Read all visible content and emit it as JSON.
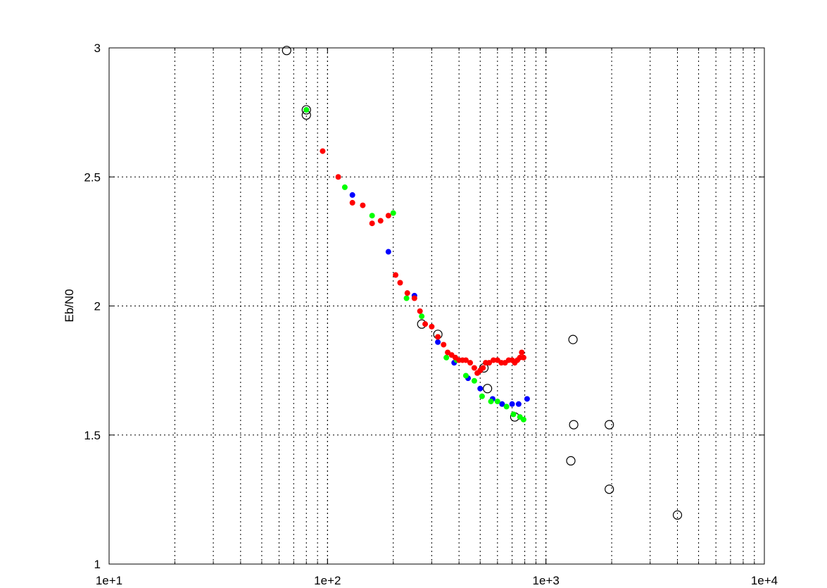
{
  "chart_data": {
    "type": "scatter",
    "title": "",
    "xlabel": "",
    "ylabel": "Eb/N0",
    "x_scale": "log",
    "xlim": [
      10,
      10000
    ],
    "ylim": [
      1,
      3
    ],
    "grid": true,
    "x_ticks": [
      10,
      100,
      1000,
      10000
    ],
    "x_tick_labels": [
      "1e+1",
      "1e+2",
      "1e+3",
      "1e+4"
    ],
    "y_ticks": [
      1,
      1.5,
      2,
      2.5,
      3
    ],
    "y_tick_labels": [
      "1",
      "1.5",
      "2",
      "2.5",
      "3"
    ],
    "series": [
      {
        "marker": "open-circle",
        "color": "#000000",
        "points": [
          [
            65,
            2.99
          ],
          [
            80,
            2.76
          ],
          [
            80,
            2.74
          ],
          [
            270,
            1.93
          ],
          [
            320,
            1.89
          ],
          [
            520,
            1.76
          ],
          [
            540,
            1.68
          ],
          [
            720,
            1.57
          ],
          [
            1330,
            1.87
          ],
          [
            1340,
            1.54
          ],
          [
            1300,
            1.4
          ],
          [
            1950,
            1.54
          ],
          [
            1950,
            1.29
          ],
          [
            4000,
            1.19
          ]
        ]
      },
      {
        "marker": "filled-circle",
        "color": "#0000ff",
        "points": [
          [
            80,
            2.76
          ],
          [
            130,
            2.43
          ],
          [
            190,
            2.21
          ],
          [
            250,
            2.04
          ],
          [
            320,
            1.86
          ],
          [
            380,
            1.78
          ],
          [
            440,
            1.72
          ],
          [
            500,
            1.68
          ],
          [
            570,
            1.64
          ],
          [
            630,
            1.62
          ],
          [
            700,
            1.62
          ],
          [
            750,
            1.62
          ],
          [
            820,
            1.64
          ]
        ]
      },
      {
        "marker": "filled-circle",
        "color": "#00ff00",
        "points": [
          [
            80,
            2.76
          ],
          [
            120,
            2.46
          ],
          [
            160,
            2.35
          ],
          [
            200,
            2.36
          ],
          [
            230,
            2.03
          ],
          [
            270,
            1.96
          ],
          [
            320,
            1.88
          ],
          [
            350,
            1.8
          ],
          [
            390,
            1.79
          ],
          [
            430,
            1.73
          ],
          [
            470,
            1.71
          ],
          [
            510,
            1.65
          ],
          [
            560,
            1.63
          ],
          [
            600,
            1.63
          ],
          [
            660,
            1.61
          ],
          [
            710,
            1.58
          ],
          [
            760,
            1.57
          ],
          [
            790,
            1.56
          ]
        ]
      },
      {
        "marker": "filled-circle",
        "color": "#ff0000",
        "points": [
          [
            95,
            2.6
          ],
          [
            112,
            2.5
          ],
          [
            130,
            2.4
          ],
          [
            145,
            2.39
          ],
          [
            160,
            2.32
          ],
          [
            175,
            2.33
          ],
          [
            190,
            2.35
          ],
          [
            205,
            2.12
          ],
          [
            215,
            2.09
          ],
          [
            232,
            2.05
          ],
          [
            250,
            2.03
          ],
          [
            265,
            1.98
          ],
          [
            280,
            1.93
          ],
          [
            300,
            1.92
          ],
          [
            320,
            1.88
          ],
          [
            340,
            1.85
          ],
          [
            355,
            1.82
          ],
          [
            370,
            1.81
          ],
          [
            385,
            1.8
          ],
          [
            400,
            1.79
          ],
          [
            415,
            1.79
          ],
          [
            430,
            1.79
          ],
          [
            450,
            1.78
          ],
          [
            470,
            1.76
          ],
          [
            485,
            1.74
          ],
          [
            500,
            1.75
          ],
          [
            515,
            1.76
          ],
          [
            530,
            1.78
          ],
          [
            550,
            1.78
          ],
          [
            575,
            1.79
          ],
          [
            600,
            1.79
          ],
          [
            625,
            1.78
          ],
          [
            650,
            1.78
          ],
          [
            675,
            1.79
          ],
          [
            700,
            1.79
          ],
          [
            720,
            1.78
          ],
          [
            740,
            1.79
          ],
          [
            760,
            1.8
          ],
          [
            775,
            1.82
          ],
          [
            790,
            1.8
          ]
        ]
      }
    ]
  }
}
